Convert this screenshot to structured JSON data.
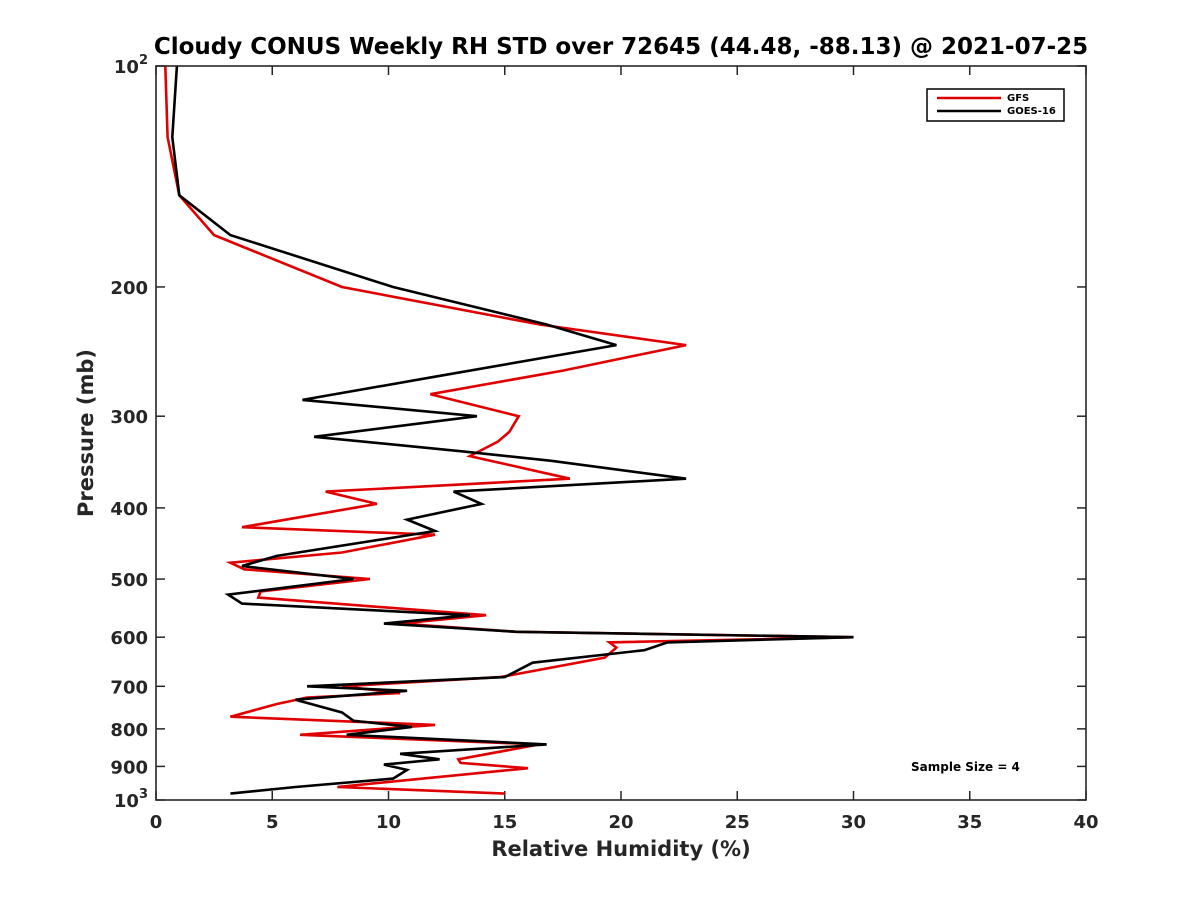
{
  "chart_data": {
    "type": "line",
    "title": "Cloudy CONUS Weekly RH STD over 72645 (44.48, -88.13) @ 2021-07-25",
    "xlabel": "Relative Humidity (%)",
    "ylabel": "Pressure (mb)",
    "xlim": [
      0,
      40
    ],
    "ylim": [
      100,
      1000
    ],
    "yscale": "log",
    "yreversed": true,
    "grid": false,
    "legend_position": "top-right",
    "x_ticks": [
      0,
      5,
      10,
      15,
      20,
      25,
      30,
      35,
      40
    ],
    "x_tick_labels": [
      "0",
      "5",
      "10",
      "15",
      "20",
      "25",
      "30",
      "35",
      "40"
    ],
    "y_ticks": [
      100,
      200,
      300,
      400,
      500,
      600,
      700,
      800,
      900,
      1000
    ],
    "y_tick_labels": [
      {
        "base": "10",
        "exp": "2"
      },
      {
        "base": "200"
      },
      {
        "base": "300"
      },
      {
        "base": "400"
      },
      {
        "base": "500"
      },
      {
        "base": "600"
      },
      {
        "base": "700"
      },
      {
        "base": "800"
      },
      {
        "base": "900"
      },
      {
        "base": "10",
        "exp": "3"
      }
    ],
    "series": [
      {
        "name": "GFS",
        "color": "#e00000",
        "points": [
          [
            0.4,
            100
          ],
          [
            0.5,
            125
          ],
          [
            1.0,
            150
          ],
          [
            2.5,
            170
          ],
          [
            8.0,
            200
          ],
          [
            16.5,
            225
          ],
          [
            22.8,
            240
          ],
          [
            17.5,
            260
          ],
          [
            11.8,
            280
          ],
          [
            15.6,
            300
          ],
          [
            15.2,
            315
          ],
          [
            14.7,
            325
          ],
          [
            13.5,
            340
          ],
          [
            17.8,
            365
          ],
          [
            7.3,
            380
          ],
          [
            9.5,
            395
          ],
          [
            3.7,
            425
          ],
          [
            12.0,
            435
          ],
          [
            8.0,
            460
          ],
          [
            3.2,
            475
          ],
          [
            3.8,
            485
          ],
          [
            9.2,
            500
          ],
          [
            4.5,
            520
          ],
          [
            4.4,
            530
          ],
          [
            14.2,
            560
          ],
          [
            10.5,
            575
          ],
          [
            15.5,
            590
          ],
          [
            30.0,
            600
          ],
          [
            19.5,
            610
          ],
          [
            19.8,
            620
          ],
          [
            19.3,
            640
          ],
          [
            14.8,
            680
          ],
          [
            8.0,
            700
          ],
          [
            10.5,
            715
          ],
          [
            6.5,
            725
          ],
          [
            5.2,
            740
          ],
          [
            3.2,
            770
          ],
          [
            12.0,
            790
          ],
          [
            6.2,
            815
          ],
          [
            16.5,
            840
          ],
          [
            13.0,
            880
          ],
          [
            13.1,
            890
          ],
          [
            16.0,
            905
          ],
          [
            7.8,
            960
          ],
          [
            15.0,
            980
          ]
        ]
      },
      {
        "name": "GOES-16",
        "color": "#000000",
        "points": [
          [
            0.9,
            100
          ],
          [
            0.7,
            125
          ],
          [
            1.0,
            150
          ],
          [
            3.2,
            170
          ],
          [
            10.2,
            200
          ],
          [
            16.8,
            225
          ],
          [
            19.8,
            240
          ],
          [
            12.0,
            265
          ],
          [
            6.3,
            285
          ],
          [
            13.8,
            300
          ],
          [
            6.8,
            320
          ],
          [
            13.2,
            335
          ],
          [
            17.0,
            345
          ],
          [
            22.8,
            365
          ],
          [
            12.8,
            380
          ],
          [
            14.0,
            395
          ],
          [
            10.8,
            415
          ],
          [
            12.0,
            430
          ],
          [
            5.2,
            465
          ],
          [
            3.7,
            480
          ],
          [
            8.5,
            500
          ],
          [
            3.1,
            525
          ],
          [
            3.7,
            540
          ],
          [
            13.5,
            560
          ],
          [
            9.8,
            575
          ],
          [
            15.5,
            590
          ],
          [
            30.0,
            600
          ],
          [
            22.0,
            610
          ],
          [
            21.0,
            625
          ],
          [
            16.2,
            650
          ],
          [
            15.0,
            680
          ],
          [
            6.5,
            700
          ],
          [
            10.8,
            710
          ],
          [
            6.0,
            730
          ],
          [
            8.0,
            760
          ],
          [
            8.5,
            780
          ],
          [
            11.0,
            795
          ],
          [
            8.2,
            815
          ],
          [
            16.8,
            840
          ],
          [
            10.5,
            865
          ],
          [
            12.2,
            880
          ],
          [
            9.8,
            895
          ],
          [
            10.8,
            910
          ],
          [
            10.2,
            935
          ],
          [
            6.0,
            960
          ],
          [
            3.2,
            980
          ]
        ]
      }
    ],
    "annotation": "Sample Size = 4"
  }
}
